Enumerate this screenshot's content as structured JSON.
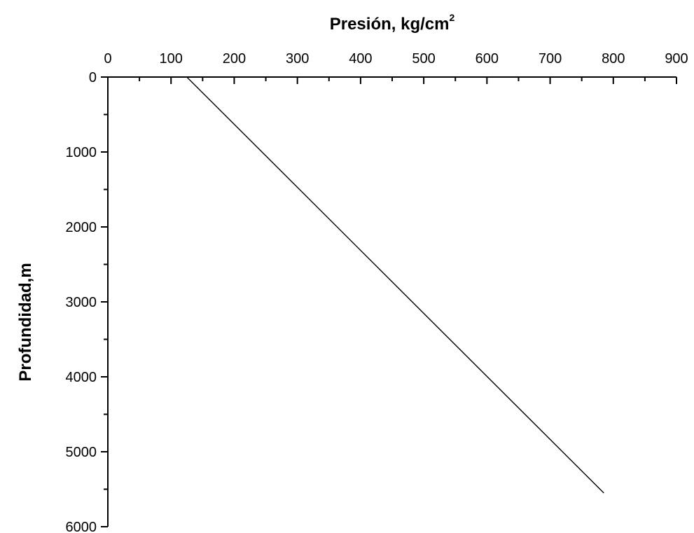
{
  "chart_data": {
    "type": "line",
    "xlabel": "Presión, kg/cm",
    "xlabel_superscript": "2",
    "ylabel": "Profundidad,m",
    "x_axis_position": "top",
    "y_axis_inverted": true,
    "xlim": [
      0,
      900
    ],
    "ylim": [
      0,
      6000
    ],
    "x_ticks": [
      "0",
      "100",
      "200",
      "300",
      "400",
      "500",
      "600",
      "700",
      "800",
      "900"
    ],
    "y_ticks": [
      "0",
      "1000",
      "2000",
      "3000",
      "4000",
      "5000",
      "6000"
    ],
    "grid": false,
    "series": [
      {
        "x": [
          125,
          785
        ],
        "y": [
          0,
          5550
        ]
      }
    ],
    "colors": {
      "line": "#000000",
      "axis": "#000000"
    }
  }
}
